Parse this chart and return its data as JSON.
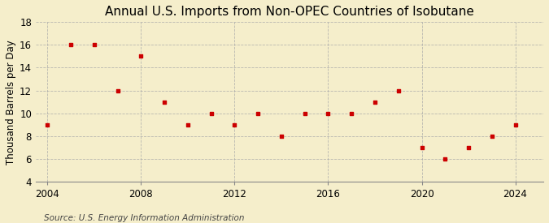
{
  "title": "Annual U.S. Imports from Non-OPEC Countries of Isobutane",
  "ylabel": "Thousand Barrels per Day",
  "source": "Source: U.S. Energy Information Administration",
  "background_color": "#f5eecb",
  "marker_color": "#cc0000",
  "years": [
    2004,
    2005,
    2006,
    2007,
    2008,
    2009,
    2010,
    2011,
    2012,
    2013,
    2014,
    2015,
    2016,
    2017,
    2018,
    2019,
    2020,
    2021,
    2022,
    2023,
    2024
  ],
  "values": [
    9,
    16,
    16,
    12,
    15,
    11,
    9,
    10,
    9,
    10,
    8,
    10,
    10,
    10,
    11,
    12,
    7,
    6,
    7,
    8,
    9
  ],
  "xlim": [
    2003.5,
    2025.2
  ],
  "ylim": [
    4,
    18
  ],
  "yticks": [
    4,
    6,
    8,
    10,
    12,
    14,
    16,
    18
  ],
  "xticks": [
    2004,
    2008,
    2012,
    2016,
    2020,
    2024
  ],
  "grid_color": "#aaaaaa",
  "title_fontsize": 11,
  "label_fontsize": 8.5,
  "tick_fontsize": 8.5,
  "source_fontsize": 7.5
}
